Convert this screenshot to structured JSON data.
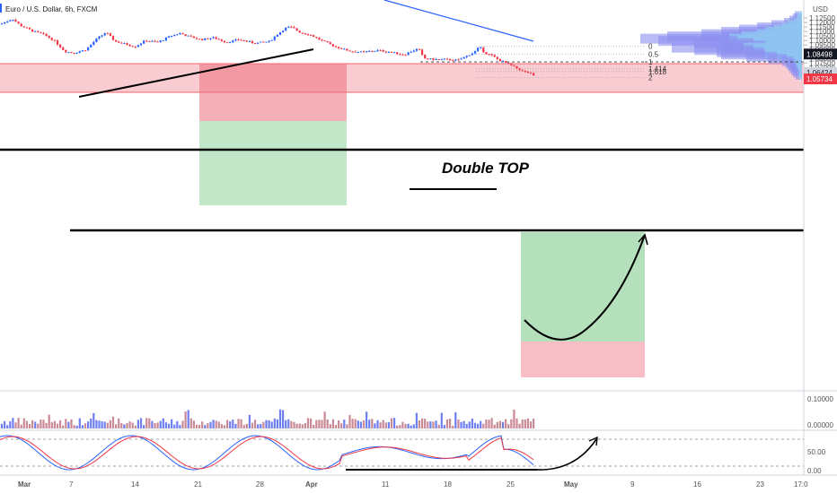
{
  "header": {
    "title": "Euro / U.S. Dollar, 6h, FXCM",
    "currency": "USD"
  },
  "colors": {
    "up": "#2962ff",
    "down": "#f23645",
    "supply_zone": "#f4a3ad",
    "demand_zone": "#a8dbb0",
    "profile_light": "#8fc3f0",
    "profile_dark": "#8c8ff0"
  },
  "chart_data": {
    "type": "candlestick",
    "price_axis": {
      "ticks": [
        "1.12500",
        "1.12000",
        "1.11500",
        "1.11000",
        "1.10500",
        "1.10000",
        "1.09500",
        "1.09000",
        "1.08500",
        "1.08000",
        "1.07500",
        "1.07000",
        "1.06500",
        "1.06000"
      ],
      "range": [
        1.0565,
        1.1285
      ]
    },
    "time_axis": {
      "labels": [
        "Mar",
        "7",
        "14",
        "21",
        "28",
        "Apr",
        "11",
        "18",
        "25",
        "May",
        "9",
        "16",
        "23",
        "17:0"
      ]
    },
    "price_badges": [
      {
        "label": "1.08498",
        "value": 1.08498,
        "style": "dark"
      },
      {
        "label": "1.06424",
        "value": 1.06424,
        "style": "gray"
      },
      {
        "label": "1.05734",
        "value": 1.05734,
        "style": "red"
      }
    ],
    "annotations": {
      "pattern_label": "Double TOP",
      "fib_levels": [
        {
          "label": "0",
          "value": 1.0935
        },
        {
          "label": "0.5",
          "value": 1.0849
        },
        {
          "label": "1",
          "value": 1.0762
        },
        {
          "label": "1.414",
          "value": 1.069
        },
        {
          "label": "1.618",
          "value": 1.0655
        },
        {
          "label": "2",
          "value": 1.0588
        }
      ]
    },
    "volume": {
      "ticks": [
        "0.10000",
        "0.00000"
      ]
    },
    "oscillator": {
      "ticks": [
        "50.00",
        "0.00"
      ],
      "upper": 80,
      "lower": 20
    }
  }
}
